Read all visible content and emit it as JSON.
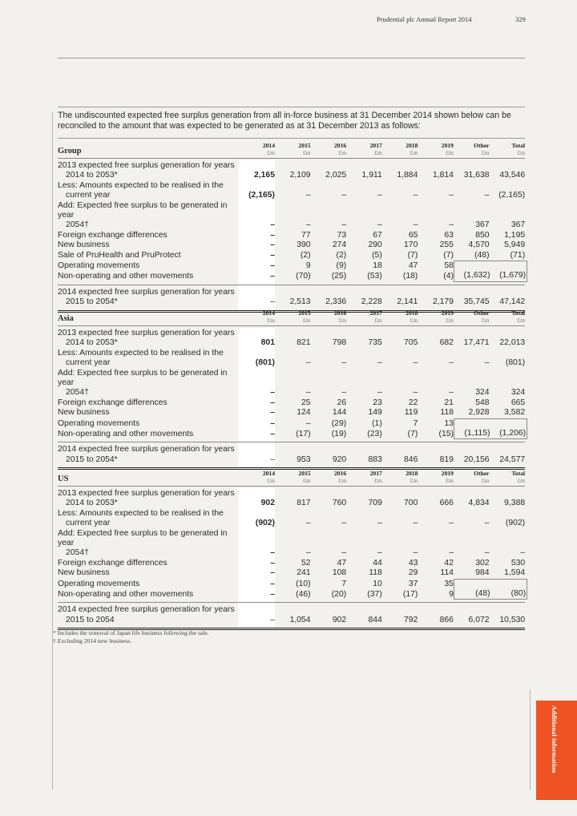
{
  "header": {
    "title": "Prudential plc  Annual Report 2014",
    "page_number": "329"
  },
  "intro": "The undiscounted expected free surplus generation from all in-force business at 31 December 2014 shown below can be reconciled to the amount that was expected to be generated as at 31 December 2013 as follows:",
  "columns": [
    {
      "year": "2014",
      "unit": "£m"
    },
    {
      "year": "2015",
      "unit": "£m"
    },
    {
      "year": "2016",
      "unit": "£m"
    },
    {
      "year": "2017",
      "unit": "£m"
    },
    {
      "year": "2018",
      "unit": "£m"
    },
    {
      "year": "2019",
      "unit": "£m"
    },
    {
      "year": "Other",
      "unit": "£m"
    },
    {
      "year": "Total",
      "unit": "£m"
    }
  ],
  "sections": [
    {
      "title": "Group",
      "rows": [
        {
          "label": [
            "2013 expected free surplus generation for years",
            "2014 to 2053*"
          ],
          "values": [
            "2,165",
            "2,109",
            "2,025",
            "1,911",
            "1,884",
            "1,814",
            "31,638",
            "43,546"
          ]
        },
        {
          "label": [
            "Less: Amounts expected to be realised in the",
            "current year"
          ],
          "values": [
            "(2,165)",
            "–",
            "–",
            "–",
            "–",
            "–",
            "–",
            "(2,165)"
          ]
        },
        {
          "label": [
            "Add: Expected free surplus to be generated in year",
            "2054†"
          ],
          "values": [
            "–",
            "–",
            "–",
            "–",
            "–",
            "–",
            "367",
            "367"
          ]
        },
        {
          "label": [
            "Foreign exchange differences"
          ],
          "values": [
            "–",
            "77",
            "73",
            "67",
            "65",
            "63",
            "850",
            "1,195"
          ]
        },
        {
          "label": [
            "New business"
          ],
          "values": [
            "–",
            "390",
            "274",
            "290",
            "170",
            "255",
            "4,570",
            "5,949"
          ]
        },
        {
          "label": [
            "Sale of PruHealth and PruProtect"
          ],
          "values": [
            "–",
            "(2)",
            "(2)",
            "(5)",
            "(7)",
            "(7)",
            "(48)",
            "(71)"
          ]
        },
        {
          "label": [
            "Operating movements"
          ],
          "values": [
            "–",
            "9",
            "(9)",
            "18",
            "47",
            "58",
            "",
            ""
          ]
        },
        {
          "label": [
            "Non-operating and other movements"
          ],
          "values": [
            "–",
            "(70)",
            "(25)",
            "(53)",
            "(18)",
            "(4)",
            "(1,632)",
            "(1,679)"
          ]
        }
      ],
      "total": {
        "label": [
          "2014 expected free surplus generation for  years",
          "2015 to 2054*"
        ],
        "values": [
          "–",
          "2,513",
          "2,336",
          "2,228",
          "2,141",
          "2,179",
          "35,745",
          "47,142"
        ]
      }
    },
    {
      "title": "Asia",
      "rows": [
        {
          "label": [
            "2013 expected free surplus generation for years",
            "2014 to 2053*"
          ],
          "values": [
            "801",
            "821",
            "798",
            "735",
            "705",
            "682",
            "17,471",
            "22,013"
          ]
        },
        {
          "label": [
            "Less: Amounts expected to be realised in the",
            "current year"
          ],
          "values": [
            "(801)",
            "–",
            "–",
            "–",
            "–",
            "–",
            "–",
            "(801)"
          ]
        },
        {
          "label": [
            "Add: Expected free surplus to be generated in year",
            "2054†"
          ],
          "values": [
            "–",
            "–",
            "–",
            "–",
            "–",
            "–",
            "324",
            "324"
          ]
        },
        {
          "label": [
            "Foreign exchange differences"
          ],
          "values": [
            "–",
            "25",
            "26",
            "23",
            "22",
            "21",
            "548",
            "665"
          ]
        },
        {
          "label": [
            "New business"
          ],
          "values": [
            "–",
            "124",
            "144",
            "149",
            "119",
            "118",
            "2,928",
            "3,582"
          ]
        },
        {
          "label": [
            "Operating movements"
          ],
          "values": [
            "–",
            "–",
            "(29)",
            "(1)",
            "7",
            "13",
            "",
            ""
          ]
        },
        {
          "label": [
            "Non-operating and other movements"
          ],
          "values": [
            "–",
            "(17)",
            "(19)",
            "(23)",
            "(7)",
            "(15)",
            "(1,115)",
            "(1,206)"
          ]
        }
      ],
      "total": {
        "label": [
          "2014 expected free surplus generation for  years",
          "2015 to 2054*"
        ],
        "values": [
          "–",
          "953",
          "920",
          "883",
          "846",
          "819",
          "20,156",
          "24,577"
        ]
      }
    },
    {
      "title": "US",
      "rows": [
        {
          "label": [
            "2013 expected free surplus generation for years",
            "2014 to 2053*"
          ],
          "values": [
            "902",
            "817",
            "760",
            "709",
            "700",
            "666",
            "4,834",
            "9,388"
          ]
        },
        {
          "label": [
            "Less: Amounts expected to be realised in the",
            "current year"
          ],
          "values": [
            "(902)",
            "–",
            "–",
            "–",
            "–",
            "–",
            "–",
            "(902)"
          ]
        },
        {
          "label": [
            "Add: Expected free surplus to be generated in year",
            "2054†"
          ],
          "values": [
            "–",
            "–",
            "–",
            "–",
            "–",
            "–",
            "–",
            "–"
          ]
        },
        {
          "label": [
            "Foreign exchange differences"
          ],
          "values": [
            "–",
            "52",
            "47",
            "44",
            "43",
            "42",
            "302",
            "530"
          ]
        },
        {
          "label": [
            "New business"
          ],
          "values": [
            "–",
            "241",
            "108",
            "118",
            "29",
            "114",
            "984",
            "1,594"
          ]
        },
        {
          "label": [
            "Operating movements"
          ],
          "values": [
            "–",
            "(10)",
            "7",
            "10",
            "37",
            "35",
            "",
            ""
          ]
        },
        {
          "label": [
            "Non-operating and other movements"
          ],
          "values": [
            "–",
            "(46)",
            "(20)",
            "(37)",
            "(17)",
            "9",
            "(48)",
            "(80)"
          ]
        }
      ],
      "total": {
        "label": [
          "2014 expected free surplus generation for  years",
          "2015 to 2054"
        ],
        "values": [
          "–",
          "1,054",
          "902",
          "844",
          "792",
          "866",
          "6,072",
          "10,530"
        ]
      }
    }
  ],
  "footnotes": [
    "* Includes the removal of Japan life business following the sale.",
    "† Excluding 2014 new business."
  ],
  "side_tab": "Additional information",
  "colors": {
    "accent": "#ef5323",
    "background": "#f2f1ed"
  }
}
